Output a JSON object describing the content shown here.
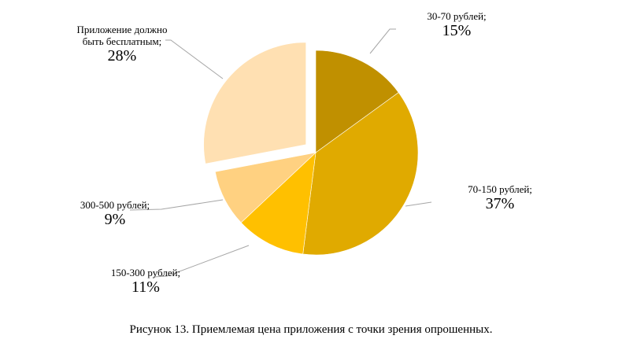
{
  "chart_data": {
    "type": "pie",
    "title": "",
    "caption": "Рисунок 13. Приемлемая цена приложения с точки зрения опрошенных.",
    "start_angle_deg": 0,
    "direction": "clockwise",
    "exploded": [
      "Приложение должно быть бесплатным"
    ],
    "legend": "none (data labels with leader lines)",
    "slices": [
      {
        "label": "30-70 рублей",
        "value": 15,
        "display": "15%",
        "color": "#C09000"
      },
      {
        "label": "70-150 рублей",
        "value": 37,
        "display": "37%",
        "color": "#E0AA00"
      },
      {
        "label": "150-300 рублей",
        "value": 11,
        "display": "11%",
        "color": "#FFC000"
      },
      {
        "label": "300-500 рублей",
        "value": 9,
        "display": "9%",
        "color": "#FFD181"
      },
      {
        "label": "Приложение должно быть бесплатным",
        "value": 28,
        "display": "28%",
        "color": "#FFE0B2"
      }
    ]
  },
  "labels": {
    "s0": {
      "name": "30-70 рублей;",
      "pct": "15%"
    },
    "s1": {
      "name": "70-150 рублей;",
      "pct": "37%"
    },
    "s2": {
      "name": "150-300 рублей;",
      "pct": "11%"
    },
    "s3": {
      "name": "300-500 рублей;",
      "pct": "9%"
    },
    "s4": {
      "name_line1": "Приложение должно",
      "name_line2": "быть бесплатным;",
      "pct": "28%"
    }
  },
  "caption": "Рисунок 13. Приемлемая цена приложения с точки зрения опрошенных.",
  "colors": {
    "leader_line": "#A6A6A6"
  }
}
